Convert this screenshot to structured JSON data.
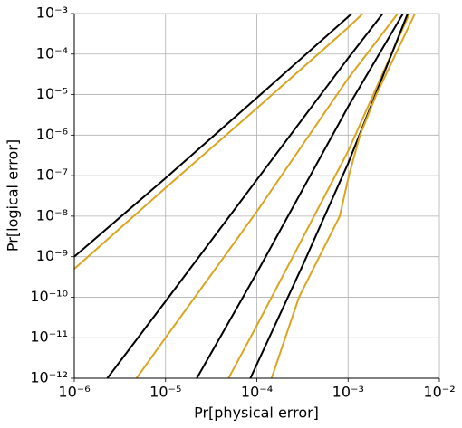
{
  "chart_data": {
    "type": "line",
    "xlabel": "Pr[physical error]",
    "ylabel": "Pr[logical error]",
    "xscale": "log",
    "yscale": "log",
    "grid": true,
    "xlim": [
      1e-06,
      0.01
    ],
    "ylim": [
      1e-12,
      0.001
    ],
    "xticks": [
      {
        "value": 1e-06,
        "label": "10⁻⁶"
      },
      {
        "value": 1e-05,
        "label": "10⁻⁵"
      },
      {
        "value": 0.0001,
        "label": "10⁻⁴"
      },
      {
        "value": 0.001,
        "label": "10⁻³"
      },
      {
        "value": 0.01,
        "label": "10⁻²"
      }
    ],
    "yticks": [
      {
        "value": 1e-12,
        "label": "10⁻¹²"
      },
      {
        "value": 1e-11,
        "label": "10⁻¹¹"
      },
      {
        "value": 1e-10,
        "label": "10⁻¹⁰"
      },
      {
        "value": 1e-09,
        "label": "10⁻⁹"
      },
      {
        "value": 1e-08,
        "label": "10⁻⁸"
      },
      {
        "value": 1e-07,
        "label": "10⁻⁷"
      },
      {
        "value": 1e-06,
        "label": "10⁻⁶"
      },
      {
        "value": 1e-05,
        "label": "10⁻⁵"
      },
      {
        "value": 0.0001,
        "label": "10⁻⁴"
      },
      {
        "value": 0.001,
        "label": "10⁻³"
      }
    ],
    "series": [
      {
        "color": "#000000",
        "x": [
          1e-06,
          1e-05,
          0.0001,
          0.0011
        ],
        "values": [
          1e-09,
          8.7e-08,
          8.3e-06,
          0.001
        ]
      },
      {
        "color": "#daa520",
        "x": [
          1e-06,
          1e-05,
          0.0001,
          0.001,
          0.00145
        ],
        "values": [
          5e-10,
          5e-08,
          4.6e-06,
          0.00045,
          0.001
        ]
      },
      {
        "color": "#000000",
        "x": [
          2.3e-06,
          1e-05,
          0.0001,
          0.001,
          0.0024
        ],
        "values": [
          1e-12,
          7.9e-11,
          7.9e-08,
          7.9e-05,
          0.001
        ]
      },
      {
        "color": "#daa520",
        "x": [
          4.8e-06,
          1e-05,
          0.0001,
          0.001,
          0.0035
        ],
        "values": [
          1e-12,
          1e-11,
          1.3e-08,
          2.5e-05,
          0.001
        ]
      },
      {
        "color": "#000000",
        "x": [
          2.2e-05,
          0.0001,
          0.001,
          0.004
        ],
        "values": [
          1e-12,
          4e-10,
          5e-06,
          0.001
        ]
      },
      {
        "color": "#daa520",
        "x": [
          4.9e-05,
          0.0001,
          0.001,
          0.0047
        ],
        "values": [
          1e-12,
          2e-11,
          4e-07,
          0.001
        ]
      },
      {
        "color": "#000000",
        "x": [
          8.5e-05,
          0.00032,
          0.001,
          0.0045
        ],
        "values": [
          1e-12,
          6.3e-10,
          2e-07,
          0.001
        ]
      },
      {
        "color": "#daa520",
        "x": [
          0.000145,
          0.00029,
          0.00081,
          0.00102,
          0.00135,
          0.00204,
          0.0054
        ],
        "values": [
          1e-12,
          1e-10,
          1e-08,
          1e-07,
          1e-06,
          1e-05,
          0.001
        ]
      }
    ]
  }
}
